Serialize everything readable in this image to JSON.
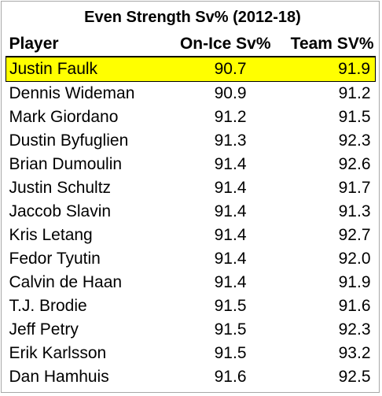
{
  "title": "Even Strength Sv% (2012-18)",
  "highlight_color": "#ffff00",
  "columns": {
    "player": "Player",
    "onice": "On-Ice Sv%",
    "team": "Team SV%"
  },
  "rows": [
    {
      "player": "Justin Faulk",
      "onice": "90.7",
      "team": "91.9",
      "highlighted": true
    },
    {
      "player": "Dennis Wideman",
      "onice": "90.9",
      "team": "91.2"
    },
    {
      "player": "Mark Giordano",
      "onice": "91.2",
      "team": "91.5"
    },
    {
      "player": "Dustin Byfuglien",
      "onice": "91.3",
      "team": "92.3"
    },
    {
      "player": "Brian Dumoulin",
      "onice": "91.4",
      "team": "92.6"
    },
    {
      "player": "Justin Schultz",
      "onice": "91.4",
      "team": "91.7"
    },
    {
      "player": "Jaccob Slavin",
      "onice": "91.4",
      "team": "91.3"
    },
    {
      "player": "Kris Letang",
      "onice": "91.4",
      "team": "92.7"
    },
    {
      "player": "Fedor Tyutin",
      "onice": "91.4",
      "team": "92.0"
    },
    {
      "player": "Calvin de Haan",
      "onice": "91.4",
      "team": "91.9"
    },
    {
      "player": "T.J. Brodie",
      "onice": "91.5",
      "team": "91.6"
    },
    {
      "player": "Jeff Petry",
      "onice": "91.5",
      "team": "92.3"
    },
    {
      "player": "Erik Karlsson",
      "onice": "91.5",
      "team": "93.2"
    },
    {
      "player": "Dan Hamhuis",
      "onice": "91.6",
      "team": "92.5"
    }
  ]
}
